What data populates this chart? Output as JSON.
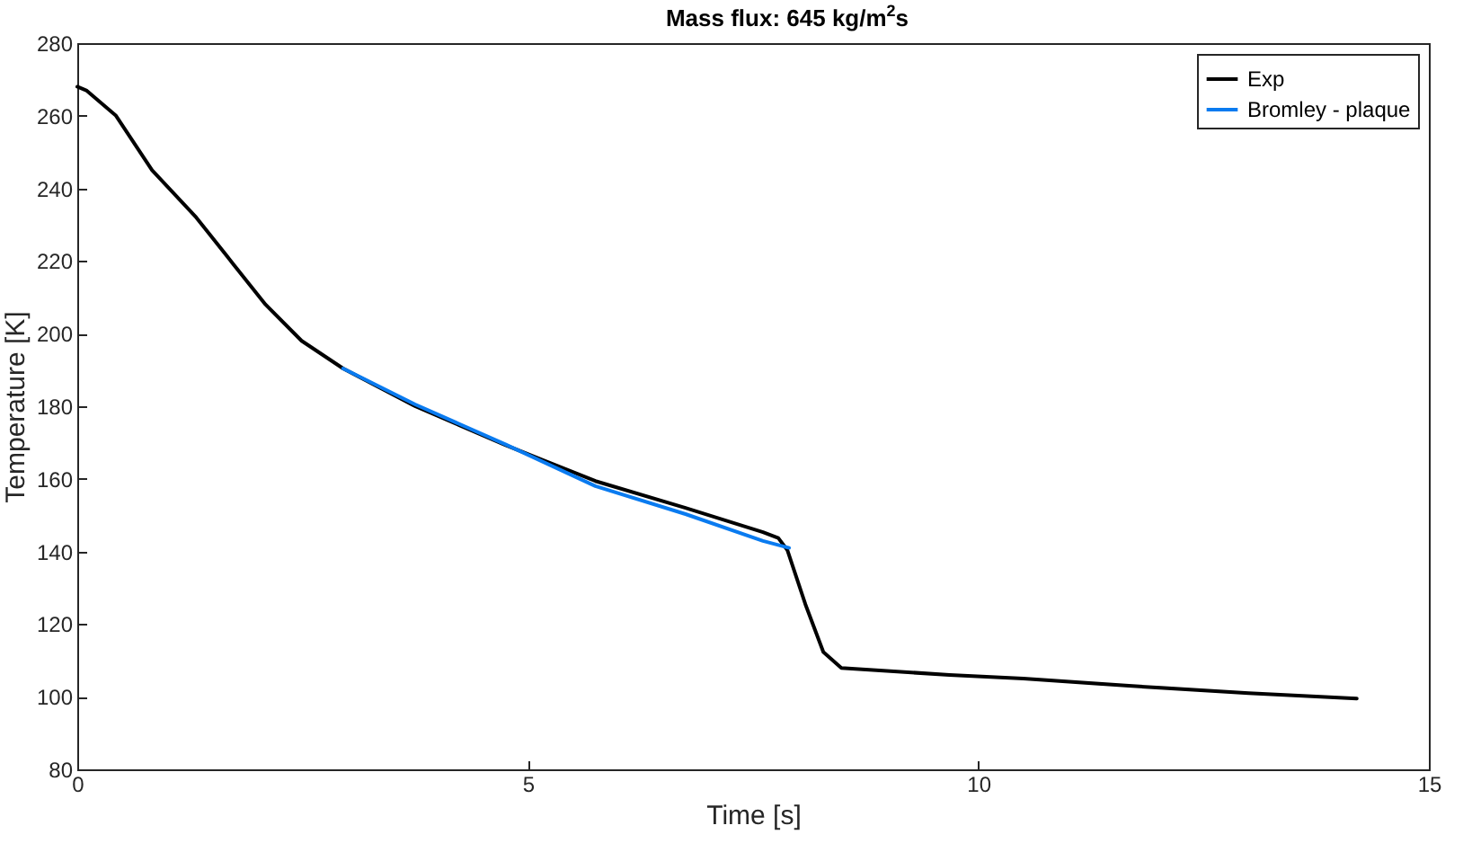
{
  "chart_data": {
    "type": "line",
    "title": "Mass flux: 645 kg/m$^{2}$s",
    "xlabel": "Time [s]",
    "ylabel": "Temperature [K]",
    "xlim": [
      0,
      15
    ],
    "xticks": [
      0,
      5,
      10,
      15
    ],
    "ylim": [
      80,
      280
    ],
    "yticks": [
      80,
      100,
      120,
      140,
      160,
      180,
      200,
      220,
      240,
      260,
      280
    ],
    "grid": false,
    "legend": "top right",
    "line_style": "solid",
    "series": [
      {
        "name": "Exp",
        "color": "#000000",
        "x": [
          0,
          0.1,
          0.43,
          0.83,
          1.32,
          1.72,
          2.09,
          2.49,
          2.95,
          3.75,
          4.75,
          5.75,
          6.75,
          7.61,
          7.78,
          7.88,
          8.08,
          8.28,
          8.48,
          9.68,
          10.5,
          11.67,
          13.0,
          14.2
        ],
        "values": [
          268,
          267,
          260,
          245,
          232,
          219.5,
          208,
          198,
          190.4,
          180,
          169.3,
          159.4,
          152,
          145.3,
          143.7,
          140.4,
          125.5,
          112.3,
          107.9,
          106,
          105,
          103,
          101,
          99.5
        ]
      },
      {
        "name": "Bromley - plaque",
        "color": "#0a7bf0",
        "x": [
          2.95,
          3.75,
          4.75,
          5.75,
          6.75,
          7.61,
          7.9
        ],
        "values": [
          190.4,
          180.5,
          169.5,
          158,
          150.3,
          142.9,
          141
        ]
      }
    ]
  }
}
